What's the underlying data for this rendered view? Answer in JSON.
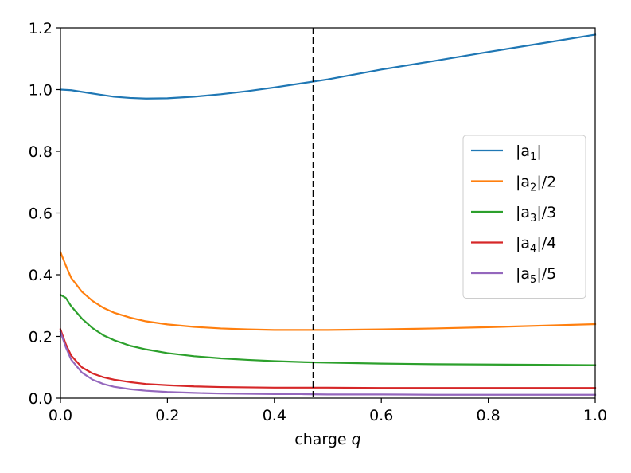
{
  "chart_data": {
    "type": "line",
    "title": "",
    "xlabel": "charge",
    "xlabel_var": "q",
    "ylabel": "",
    "xlim": [
      0.0,
      1.0
    ],
    "ylim": [
      0.0,
      1.2
    ],
    "xticks": [
      "0.0",
      "0.2",
      "0.4",
      "0.6",
      "0.8",
      "1.0"
    ],
    "yticks": [
      "0.0",
      "0.2",
      "0.4",
      "0.6",
      "0.8",
      "1.0",
      "1.2"
    ],
    "grid": false,
    "legend_position": "center-right",
    "vline": {
      "x": 0.473,
      "style": "dashed",
      "color": "#000000"
    },
    "series": [
      {
        "name": "|a1|",
        "legend_pre": "|a",
        "legend_sub": "1",
        "legend_post": "|",
        "color": "#1f77b4",
        "x": [
          0.0,
          0.02,
          0.05,
          0.08,
          0.1,
          0.13,
          0.16,
          0.2,
          0.25,
          0.3,
          0.35,
          0.4,
          0.45,
          0.5,
          0.6,
          0.7,
          0.8,
          0.9,
          1.0
        ],
        "y": [
          1.0,
          0.998,
          0.99,
          0.982,
          0.977,
          0.973,
          0.971,
          0.972,
          0.977,
          0.985,
          0.995,
          1.007,
          1.02,
          1.033,
          1.065,
          1.093,
          1.122,
          1.15,
          1.178
        ]
      },
      {
        "name": "|a2|/2",
        "legend_pre": "|a",
        "legend_sub": "2",
        "legend_post": "|/2",
        "color": "#ff7f0e",
        "x": [
          0.0,
          0.01,
          0.02,
          0.04,
          0.06,
          0.08,
          0.1,
          0.13,
          0.16,
          0.2,
          0.25,
          0.3,
          0.35,
          0.4,
          0.45,
          0.5,
          0.6,
          0.7,
          0.8,
          0.9,
          1.0
        ],
        "y": [
          0.473,
          0.43,
          0.39,
          0.345,
          0.315,
          0.293,
          0.277,
          0.261,
          0.249,
          0.239,
          0.231,
          0.226,
          0.223,
          0.221,
          0.221,
          0.221,
          0.223,
          0.226,
          0.23,
          0.235,
          0.24
        ]
      },
      {
        "name": "|a3|/3",
        "legend_pre": "|a",
        "legend_sub": "3",
        "legend_post": "|/3",
        "color": "#2ca02c",
        "x": [
          0.0,
          0.01,
          0.02,
          0.04,
          0.06,
          0.08,
          0.1,
          0.13,
          0.16,
          0.2,
          0.25,
          0.3,
          0.35,
          0.4,
          0.45,
          0.5,
          0.6,
          0.7,
          0.8,
          0.9,
          1.0
        ],
        "y": [
          0.335,
          0.325,
          0.298,
          0.258,
          0.227,
          0.204,
          0.188,
          0.17,
          0.158,
          0.146,
          0.136,
          0.129,
          0.124,
          0.12,
          0.117,
          0.115,
          0.112,
          0.11,
          0.109,
          0.108,
          0.107
        ]
      },
      {
        "name": "|a4|/4",
        "legend_pre": "|a",
        "legend_sub": "4",
        "legend_post": "|/4",
        "color": "#d62728",
        "x": [
          0.0,
          0.01,
          0.02,
          0.04,
          0.06,
          0.08,
          0.1,
          0.13,
          0.16,
          0.2,
          0.25,
          0.3,
          0.35,
          0.4,
          0.45,
          0.5,
          0.6,
          0.7,
          0.8,
          0.9,
          1.0
        ],
        "y": [
          0.223,
          0.175,
          0.138,
          0.1,
          0.08,
          0.068,
          0.06,
          0.052,
          0.046,
          0.042,
          0.038,
          0.036,
          0.035,
          0.034,
          0.034,
          0.034,
          0.033,
          0.033,
          0.033,
          0.033,
          0.033
        ]
      },
      {
        "name": "|a5|/5",
        "legend_pre": "|a",
        "legend_sub": "5",
        "legend_post": "|/5",
        "color": "#9467bd",
        "x": [
          0.0,
          0.01,
          0.02,
          0.04,
          0.06,
          0.08,
          0.1,
          0.13,
          0.16,
          0.2,
          0.25,
          0.3,
          0.35,
          0.4,
          0.45,
          0.5,
          0.6,
          0.7,
          0.8,
          0.9,
          1.0
        ],
        "y": [
          0.215,
          0.165,
          0.125,
          0.083,
          0.06,
          0.046,
          0.037,
          0.029,
          0.024,
          0.02,
          0.017,
          0.015,
          0.014,
          0.013,
          0.013,
          0.012,
          0.012,
          0.011,
          0.011,
          0.011,
          0.011
        ]
      }
    ]
  }
}
